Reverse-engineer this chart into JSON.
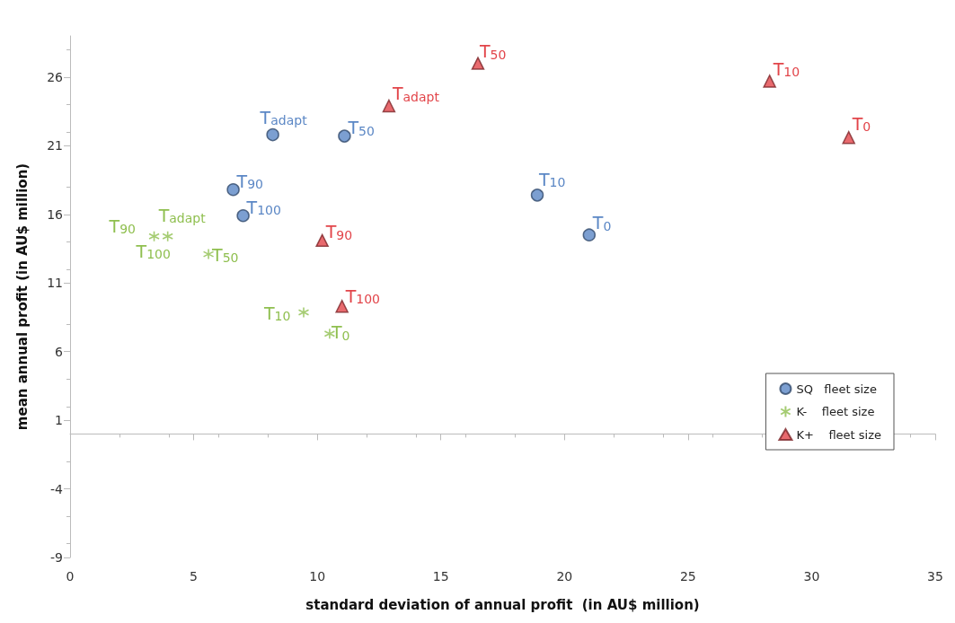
{
  "chart_data": {
    "type": "scatter",
    "xlabel": "standard deviation of annual profit  (in AU$ million)",
    "ylabel": "mean annual profit (in AU$ million)",
    "xlim": [
      0,
      35
    ],
    "xticks": [
      0,
      5,
      10,
      15,
      20,
      25,
      30,
      35
    ],
    "ylim": [
      -9,
      29
    ],
    "yticks": [
      -9,
      -4,
      1,
      6,
      11,
      16,
      21,
      26
    ],
    "grid": false,
    "legend": "bottom right",
    "series": [
      {
        "name": "SQ   fleet size",
        "color": "#5b87c5",
        "marker": "circle",
        "x": [
          8.2,
          11.1,
          6.6,
          7.0,
          18.9,
          21.0
        ],
        "values": [
          21.8,
          21.7,
          17.8,
          15.9,
          17.4,
          14.5
        ]
      },
      {
        "name": "K-    fleet size",
        "color": "#8fbf4f",
        "marker": "cross",
        "x": [
          3.4,
          3.95,
          5.6,
          9.45,
          10.5
        ],
        "values": [
          14.4,
          14.4,
          13.1,
          8.85,
          7.3
        ]
      },
      {
        "name": "K+    fleet size",
        "color": "#e2454a",
        "marker": "triangle",
        "x": [
          16.5,
          12.9,
          28.3,
          31.5,
          10.2,
          11.0
        ],
        "values": [
          27.0,
          23.9,
          25.7,
          21.6,
          14.1,
          9.3
        ]
      }
    ],
    "annotations": [
      {
        "text": "T$_{adapt}$",
        "x": 8.2,
        "y": 21.8
      },
      {
        "text": "T$_{50}$",
        "x": 11.1,
        "y": 21.7
      },
      {
        "text": "T$_{90}$",
        "x": 6.6,
        "y": 17.8
      },
      {
        "text": "T$_{100}$",
        "x": 7.0,
        "y": 15.9
      },
      {
        "text": "T$_{10}$",
        "x": 18.9,
        "y": 17.4
      },
      {
        "text": "T$_{0}$",
        "x": 21.0,
        "y": 14.5
      },
      {
        "text": "T$_{90}$",
        "x": 3.4,
        "y": 14.4
      },
      {
        "text": "T$_{adapt}$",
        "x": 3.95,
        "y": 14.4
      },
      {
        "text": "T$_{100}$",
        "x": 3.4,
        "y": 14.4
      },
      {
        "text": "T$_{50}$",
        "x": 5.6,
        "y": 13.1
      },
      {
        "text": "T$_{10}$",
        "x": 9.45,
        "y": 8.85
      },
      {
        "text": "T$_{0}$",
        "x": 10.5,
        "y": 7.3
      },
      {
        "text": "T$_{50}$",
        "x": 16.5,
        "y": 27.0
      },
      {
        "text": "T$_{adapt}$",
        "x": 12.9,
        "y": 23.9
      },
      {
        "text": "T$_{10}$",
        "x": 28.3,
        "y": 25.7
      },
      {
        "text": "T$_{0}$",
        "x": 31.5,
        "y": 21.6
      },
      {
        "text": "T$_{90}$",
        "x": 10.2,
        "y": 14.1
      },
      {
        "text": "T$_{100}$",
        "x": 11.0,
        "y": 9.3
      }
    ]
  }
}
